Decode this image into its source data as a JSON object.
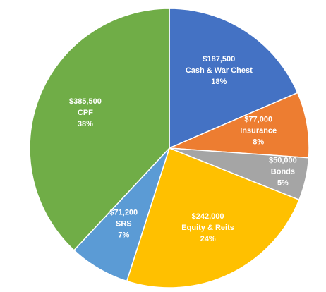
{
  "chart_data": {
    "type": "pie",
    "title": "",
    "slices": [
      {
        "name": "Cash & War Chest",
        "amount": "$187,500",
        "value": 187500,
        "percent": "18%",
        "color": "#4472C4"
      },
      {
        "name": "Insurance",
        "amount": "$77,000",
        "value": 77000,
        "percent": "8%",
        "color": "#ED7D31"
      },
      {
        "name": "Bonds",
        "amount": "$50,000",
        "value": 50000,
        "percent": "5%",
        "color": "#A5A5A5"
      },
      {
        "name": "Equity & Reits",
        "amount": "$242,000",
        "value": 242000,
        "percent": "24%",
        "color": "#FFC000"
      },
      {
        "name": "SRS",
        "amount": "$71,200",
        "value": 71200,
        "percent": "7%",
        "color": "#5B9BD5"
      },
      {
        "name": "CPF",
        "amount": "$385,500",
        "value": 385500,
        "percent": "38%",
        "color": "#70AD47"
      }
    ],
    "start_angle_deg": 0,
    "direction": "clockwise",
    "legend": "none",
    "border_color": "#ffffff"
  }
}
